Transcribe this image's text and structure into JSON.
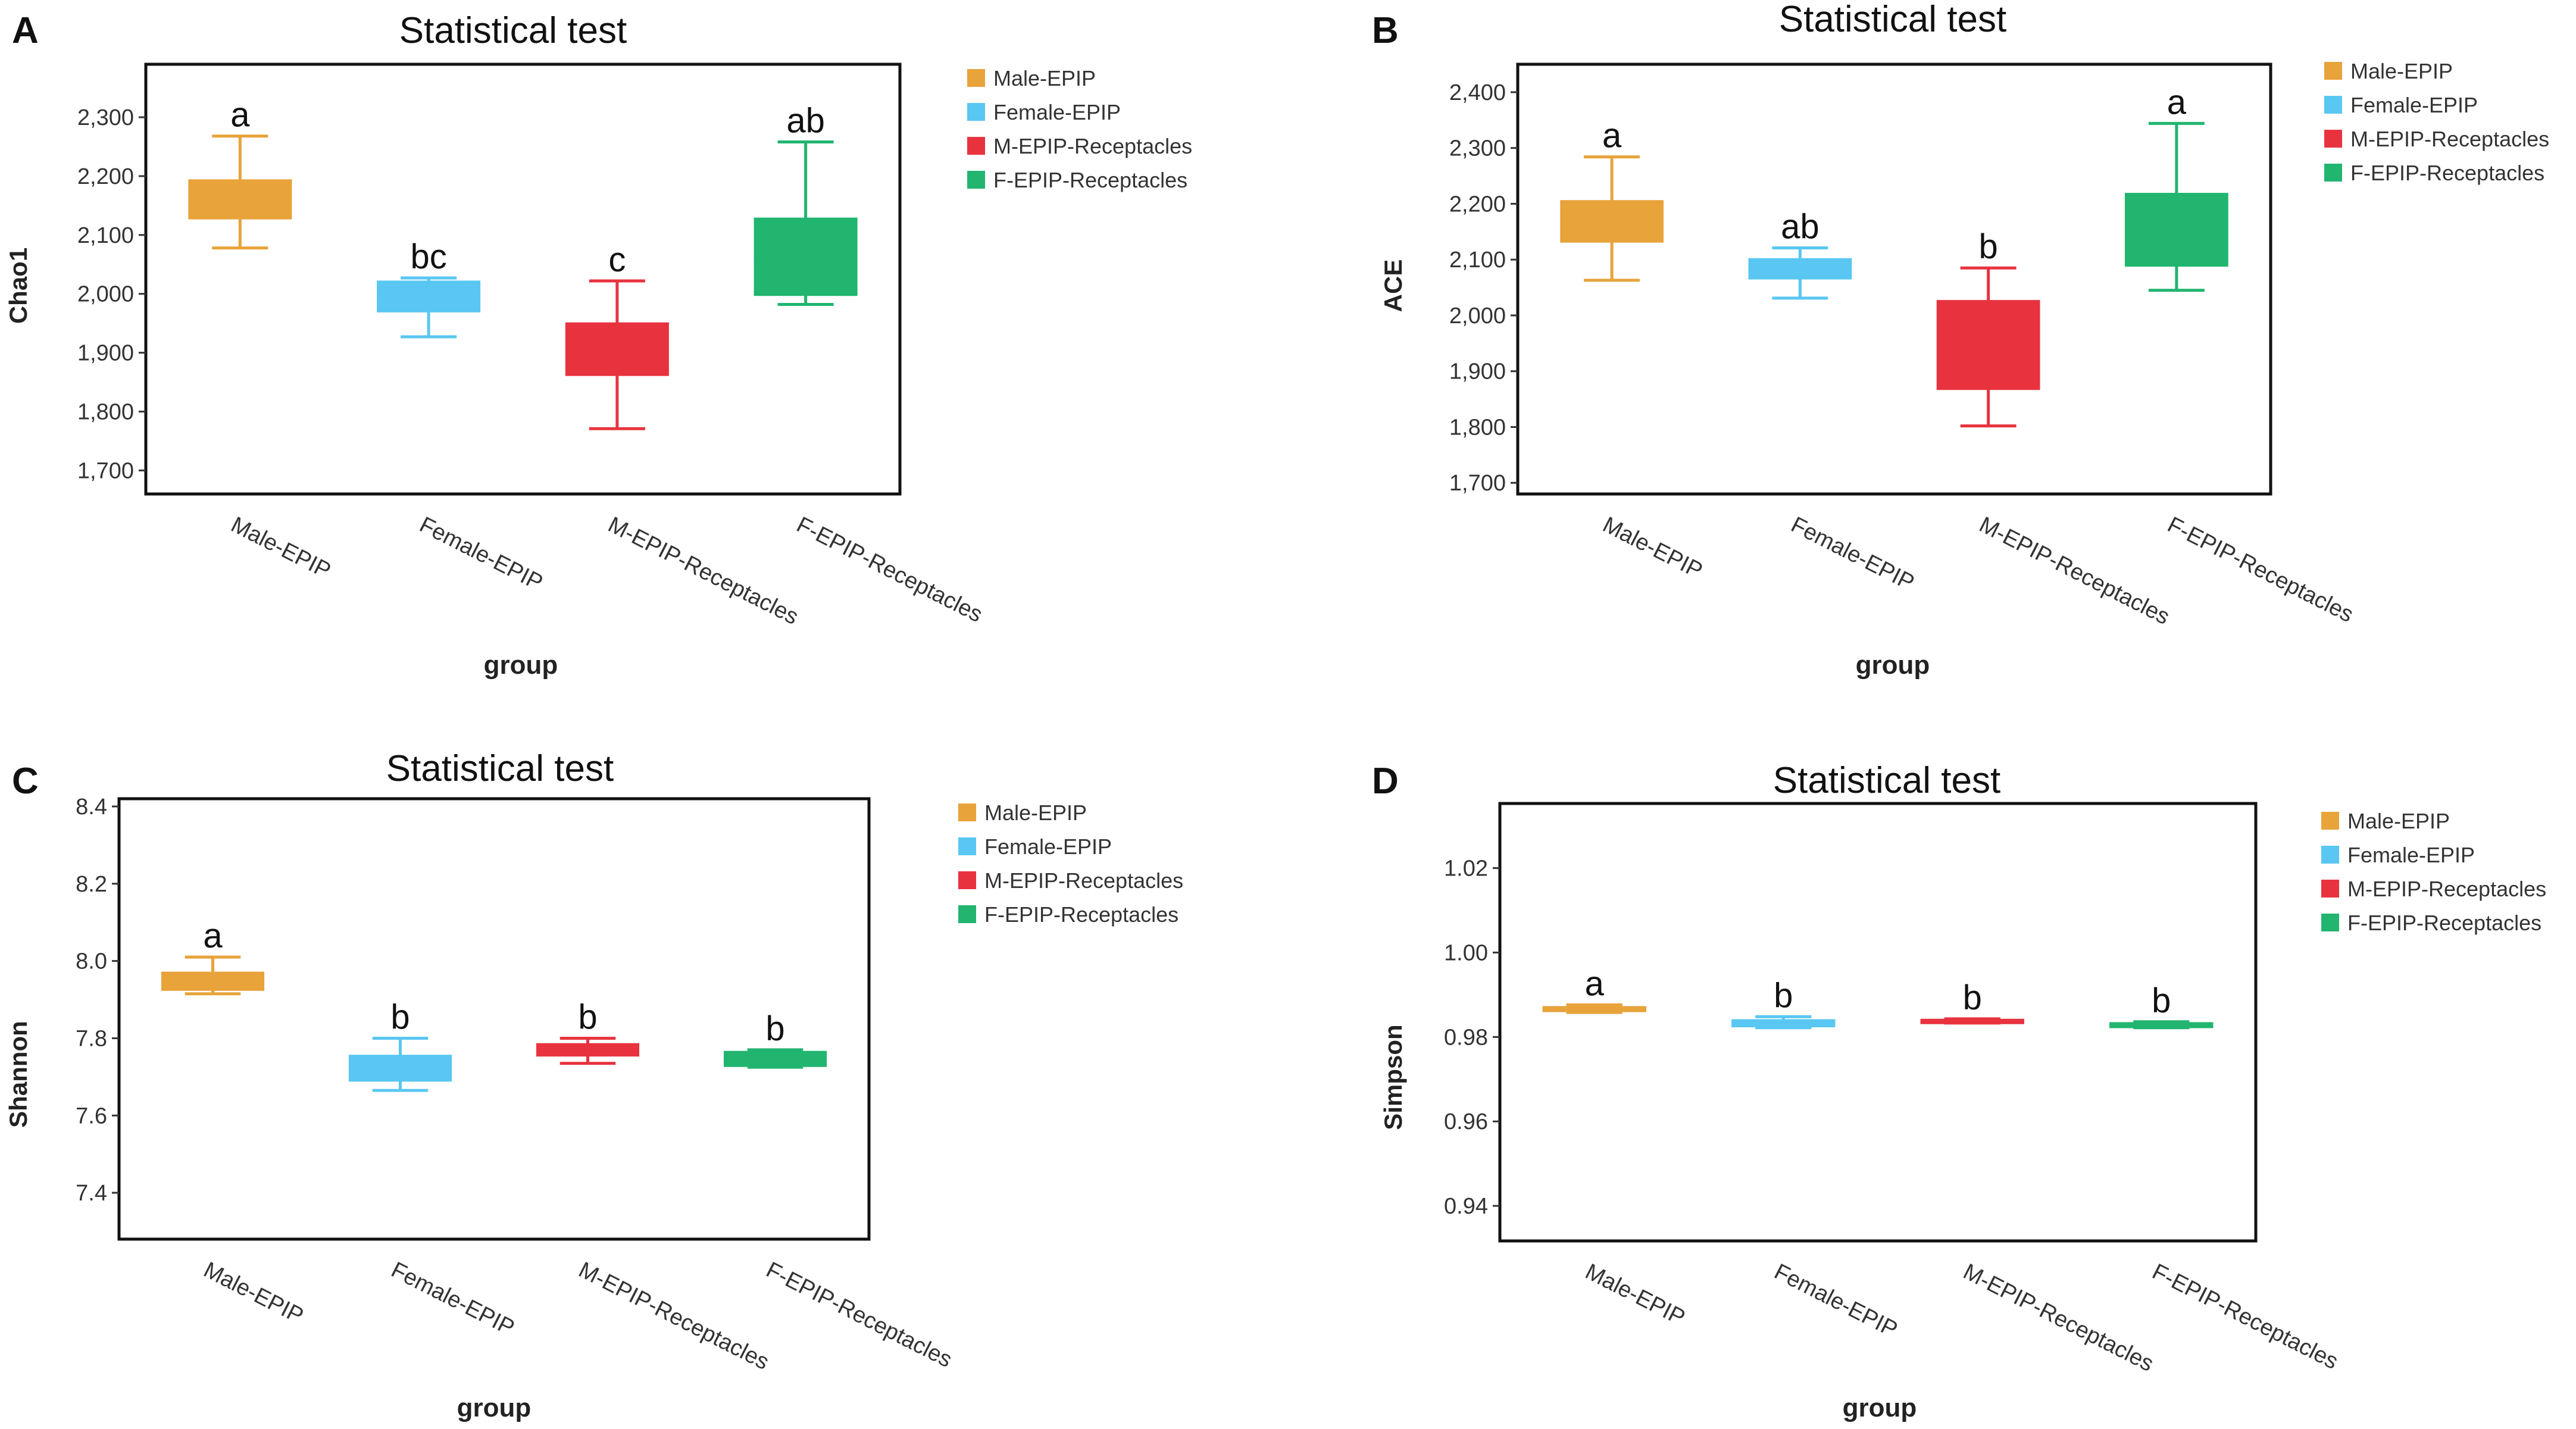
{
  "legend": [
    {
      "name": "Male-EPIP",
      "color": "#E8A33A"
    },
    {
      "name": "Female-EPIP",
      "color": "#59C7F2"
    },
    {
      "name": "M-EPIP-Receptacles",
      "color": "#E8333F"
    },
    {
      "name": "F-EPIP-Receptacles",
      "color": "#21B56F"
    }
  ],
  "chart_data": [
    {
      "panel": "A",
      "type": "box",
      "title": "Statistical test",
      "xlabel": "group",
      "ylabel": "Chao1",
      "categories": [
        "Male-EPIP",
        "Female-EPIP",
        "M-EPIP-Receptacles",
        "F-EPIP-Receptacles"
      ],
      "ylim": [
        1660,
        2390
      ],
      "yticks": [
        1700,
        1800,
        1900,
        2000,
        2100,
        2200,
        2300
      ],
      "ytick_labels": [
        "1,700",
        "1,800",
        "1,900",
        "2,000",
        "2,100",
        "2,200",
        "2,300"
      ],
      "boxes": [
        {
          "min": 2078,
          "q1": 2128,
          "median": 2160,
          "q3": 2193,
          "max": 2268,
          "letter": "a"
        },
        {
          "min": 1927,
          "q1": 1970,
          "median": 1995,
          "q3": 2021,
          "max": 2027,
          "letter": "bc"
        },
        {
          "min": 1771,
          "q1": 1862,
          "median": 1905,
          "q3": 1950,
          "max": 2022,
          "letter": "c"
        },
        {
          "min": 1982,
          "q1": 1998,
          "median": 2060,
          "q3": 2128,
          "max": 2258,
          "letter": "ab"
        }
      ]
    },
    {
      "panel": "B",
      "type": "box",
      "title": "Statistical test",
      "xlabel": "group",
      "ylabel": "ACE",
      "categories": [
        "Male-EPIP",
        "Female-EPIP",
        "M-EPIP-Receptacles",
        "F-EPIP-Receptacles"
      ],
      "ylim": [
        1680,
        2450
      ],
      "yticks": [
        1700,
        1800,
        1900,
        2000,
        2100,
        2200,
        2300,
        2400
      ],
      "ytick_labels": [
        "1,700",
        "1,800",
        "1,900",
        "2,000",
        "2,100",
        "2,200",
        "2,300",
        "2,400"
      ],
      "boxes": [
        {
          "min": 2063,
          "q1": 2132,
          "median": 2170,
          "q3": 2205,
          "max": 2284,
          "letter": "a"
        },
        {
          "min": 2031,
          "q1": 2066,
          "median": 2083,
          "q3": 2101,
          "max": 2121,
          "letter": "ab"
        },
        {
          "min": 1802,
          "q1": 1868,
          "median": 1945,
          "q3": 2026,
          "max": 2085,
          "letter": "b"
        },
        {
          "min": 2045,
          "q1": 2089,
          "median": 2150,
          "q3": 2218,
          "max": 2344,
          "letter": "a"
        }
      ]
    },
    {
      "panel": "C",
      "type": "box",
      "title": "Statistical test",
      "xlabel": "group",
      "ylabel": "Shannon",
      "categories": [
        "Male-EPIP",
        "Female-EPIP",
        "M-EPIP-Receptacles",
        "F-EPIP-Receptacles"
      ],
      "ylim": [
        7.28,
        8.42
      ],
      "yticks": [
        7.4,
        7.6,
        7.8,
        8.0,
        8.2,
        8.4
      ],
      "ytick_labels": [
        "7.4",
        "7.6",
        "7.8",
        "8.0",
        "8.2",
        "8.4"
      ],
      "boxes": [
        {
          "min": 7.915,
          "q1": 7.925,
          "median": 7.95,
          "q3": 7.97,
          "max": 8.01,
          "letter": "a"
        },
        {
          "min": 7.665,
          "q1": 7.69,
          "median": 7.72,
          "q3": 7.755,
          "max": 7.8,
          "letter": "b"
        },
        {
          "min": 7.735,
          "q1": 7.755,
          "median": 7.77,
          "q3": 7.785,
          "max": 7.8,
          "letter": "b"
        },
        {
          "min": 7.725,
          "q1": 7.728,
          "median": 7.745,
          "q3": 7.765,
          "max": 7.77,
          "letter": "b"
        }
      ]
    },
    {
      "panel": "D",
      "type": "box",
      "title": "Statistical test",
      "xlabel": "group",
      "ylabel": "Simpson",
      "categories": [
        "Male-EPIP",
        "Female-EPIP",
        "M-EPIP-Receptacles",
        "F-EPIP-Receptacles"
      ],
      "ylim": [
        0.9317,
        1.0353
      ],
      "yticks": [
        0.94,
        0.96,
        0.98,
        1.0,
        1.02
      ],
      "ytick_labels": [
        "0.94",
        "0.96",
        "0.98",
        "1.00",
        "1.02"
      ],
      "boxes": [
        {
          "min": 0.9858,
          "q1": 0.9861,
          "median": 0.9866,
          "q3": 0.9871,
          "max": 0.9876,
          "letter": "a"
        },
        {
          "min": 0.9822,
          "q1": 0.9825,
          "median": 0.9832,
          "q3": 0.984,
          "max": 0.9848,
          "letter": "b"
        },
        {
          "min": 0.9833,
          "q1": 0.9835,
          "median": 0.9838,
          "q3": 0.9841,
          "max": 0.9843,
          "letter": "b"
        },
        {
          "min": 0.9822,
          "q1": 0.9823,
          "median": 0.9828,
          "q3": 0.9833,
          "max": 0.9836,
          "letter": "b"
        }
      ]
    }
  ]
}
